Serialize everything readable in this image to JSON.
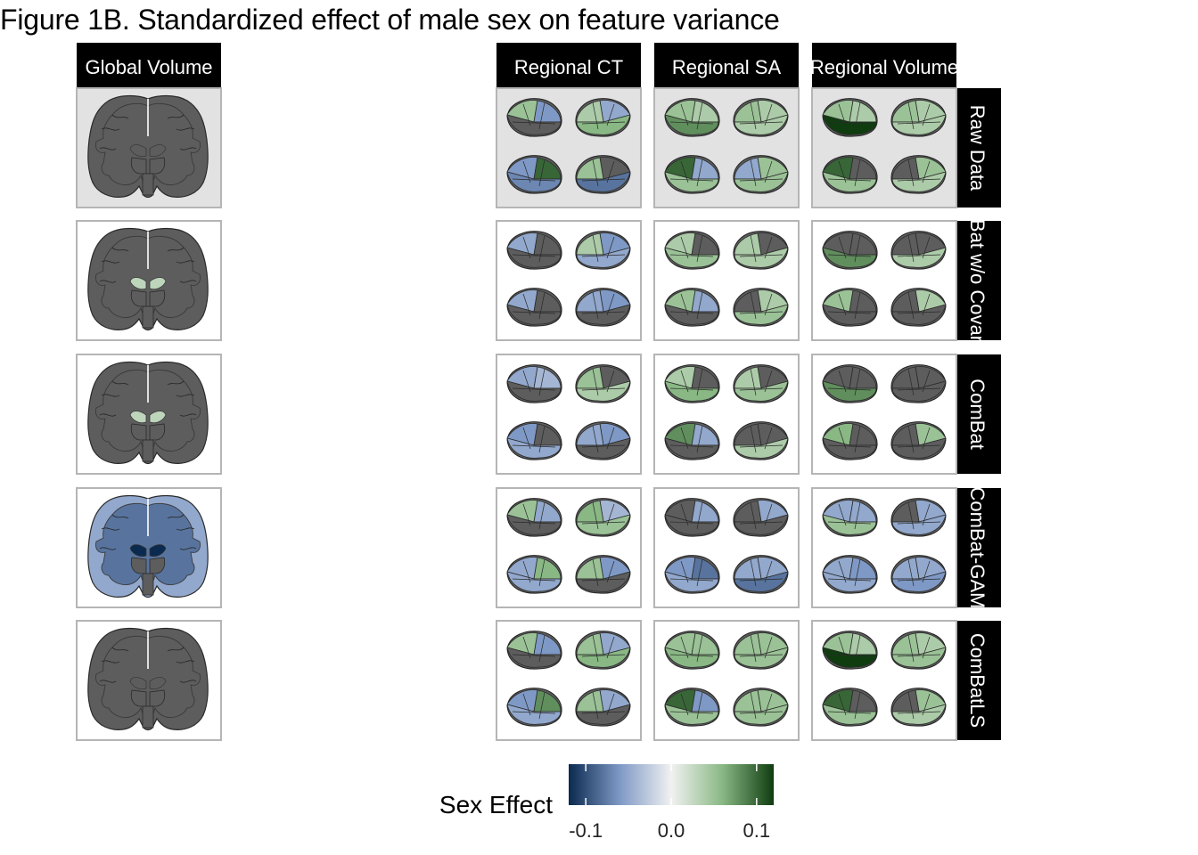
{
  "chart_data": {
    "type": "heatmap",
    "title": "Figure 1B. Standardized effect of male sex on feature variance",
    "columns": [
      "Global Volume",
      "Regional CT",
      "Regional SA",
      "Regional Volume"
    ],
    "rows": [
      "Raw Data",
      "ComBat w/o Covariates",
      "ComBat",
      "ComBat-GAM",
      "ComBatLS"
    ],
    "legend": {
      "title": "Sex Effect",
      "ticks": [
        -0.1,
        0.0,
        0.1
      ],
      "tick_labels": [
        "-0.1",
        "0.0",
        "0.1"
      ],
      "range": [
        -0.12,
        0.12
      ],
      "colors": {
        "low": "#0b2a4f",
        "mid_low": "#7f99c6",
        "mid": "#f1f1f1",
        "mid_high": "#89b884",
        "high": "#0f3d10"
      },
      "position": "bottom"
    },
    "colors": {
      "na_region": "#5d5d5d",
      "highlight_panel_bg": "#e2e2e2",
      "panel_border": "#b5b5b5",
      "strip_bg": "#000000"
    },
    "panels": [
      {
        "row": "Raw Data",
        "col": "Global Volume",
        "values": {
          "cortex": null,
          "white_matter": null,
          "ventricles": null
        }
      },
      {
        "row": "ComBat w/o Covariates",
        "col": "Global Volume",
        "values": {
          "cortex": null,
          "white_matter": null,
          "ventricles": 0.03
        }
      },
      {
        "row": "ComBat",
        "col": "Global Volume",
        "values": {
          "cortex": null,
          "white_matter": null,
          "ventricles": 0.03
        }
      },
      {
        "row": "ComBat-GAM",
        "col": "Global Volume",
        "values": {
          "cortex": -0.05,
          "white_matter": -0.08,
          "ventricles": -0.12
        }
      },
      {
        "row": "ComBatLS",
        "col": "Global Volume",
        "values": {
          "cortex": null,
          "white_matter": null,
          "ventricles": null
        }
      },
      {
        "row": "Raw Data",
        "col": "Regional CT",
        "values": [
          0.05,
          -0.06,
          null,
          -0.05,
          0.04,
          0.06,
          -0.06,
          0.1,
          -0.07,
          null,
          0.05,
          -0.08
        ]
      },
      {
        "row": "ComBat w/o Covariates",
        "col": "Regional CT",
        "values": [
          -0.05,
          null,
          null,
          -0.06,
          0.04,
          -0.05,
          -0.05,
          null,
          null,
          -0.06,
          -0.05,
          null
        ]
      },
      {
        "row": "ComBat",
        "col": "Regional CT",
        "values": [
          -0.05,
          -0.04,
          null,
          null,
          0.05,
          0.04,
          -0.06,
          null,
          -0.05,
          -0.06,
          -0.05,
          null
        ]
      },
      {
        "row": "ComBat-GAM",
        "col": "Regional CT",
        "values": [
          0.05,
          -0.05,
          null,
          -0.04,
          0.06,
          0.05,
          -0.05,
          0.06,
          -0.05,
          -0.06,
          0.05,
          null
        ]
      },
      {
        "row": "ComBatLS",
        "col": "Regional CT",
        "values": [
          0.05,
          -0.06,
          null,
          -0.05,
          0.05,
          0.06,
          -0.06,
          0.08,
          -0.05,
          -0.05,
          0.05,
          null
        ]
      },
      {
        "row": "Raw Data",
        "col": "Regional SA",
        "values": [
          0.05,
          0.04,
          0.08,
          0.04,
          0.05,
          0.04,
          0.1,
          -0.05,
          0.05,
          0.05,
          -0.05,
          0.05
        ]
      },
      {
        "row": "ComBat w/o Covariates",
        "col": "Regional SA",
        "values": [
          0.04,
          null,
          0.05,
          null,
          0.04,
          0.04,
          0.05,
          -0.05,
          null,
          0.04,
          null,
          0.05
        ]
      },
      {
        "row": "ComBat",
        "col": "Regional SA",
        "values": [
          0.04,
          null,
          0.06,
          null,
          0.04,
          0.05,
          0.08,
          -0.05,
          null,
          null,
          null,
          0.04
        ]
      },
      {
        "row": "ComBat-GAM",
        "col": "Regional SA",
        "values": [
          null,
          -0.05,
          null,
          -0.05,
          null,
          null,
          -0.06,
          -0.08,
          -0.05,
          -0.05,
          -0.05,
          -0.08
        ]
      },
      {
        "row": "ComBatLS",
        "col": "Regional SA",
        "values": [
          0.05,
          0.05,
          0.06,
          0.05,
          0.05,
          0.05,
          0.1,
          -0.06,
          0.05,
          0.05,
          0.05,
          0.05
        ]
      },
      {
        "row": "Raw Data",
        "col": "Regional Volume",
        "values": [
          0.05,
          0.04,
          0.12,
          0.04,
          0.05,
          0.04,
          0.1,
          null,
          0.05,
          0.05,
          null,
          0.04
        ]
      },
      {
        "row": "ComBat w/o Covariates",
        "col": "Regional Volume",
        "values": [
          null,
          null,
          0.08,
          null,
          null,
          0.04,
          0.05,
          null,
          null,
          0.04,
          null,
          null
        ]
      },
      {
        "row": "ComBat",
        "col": "Regional Volume",
        "values": [
          null,
          null,
          0.08,
          null,
          null,
          null,
          0.06,
          null,
          null,
          0.05,
          null,
          null
        ]
      },
      {
        "row": "ComBat-GAM",
        "col": "Regional Volume",
        "values": [
          -0.05,
          -0.05,
          0.05,
          -0.05,
          null,
          -0.05,
          -0.05,
          -0.06,
          -0.05,
          -0.05,
          -0.05,
          -0.06
        ]
      },
      {
        "row": "ComBatLS",
        "col": "Regional Volume",
        "values": [
          0.05,
          0.04,
          0.12,
          0.04,
          0.05,
          0.05,
          0.1,
          null,
          0.05,
          0.05,
          null,
          0.04
        ]
      }
    ]
  }
}
